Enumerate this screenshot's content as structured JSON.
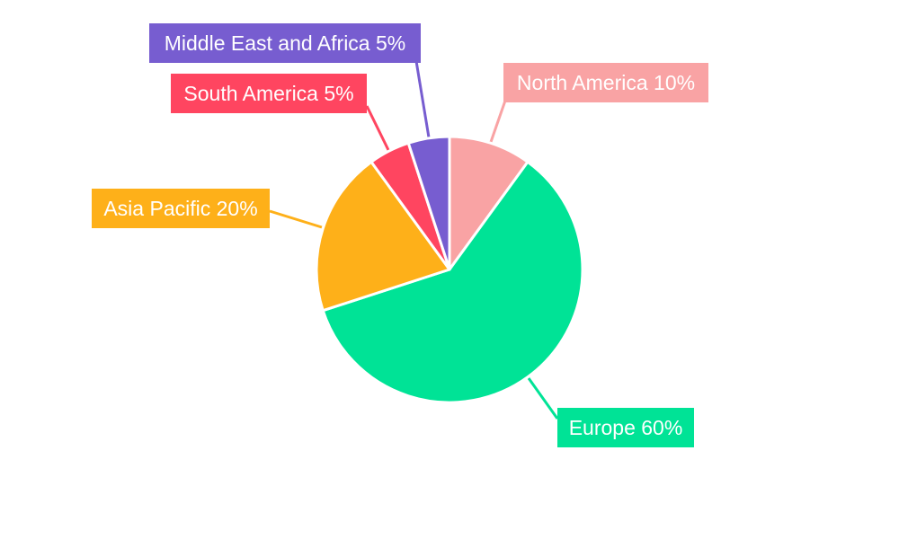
{
  "chart_data": {
    "type": "pie",
    "title": "",
    "categories": [
      "North America",
      "Europe",
      "Asia Pacific",
      "South America",
      "Middle East and Africa"
    ],
    "values": [
      10,
      60,
      20,
      5,
      5
    ],
    "labels": [
      "North America 10%",
      "Europe 60%",
      "Asia Pacific 20%",
      "South America 5%",
      "Middle East and Africa 5%"
    ],
    "colors": [
      "#f9a3a4",
      "#00e396",
      "#feb019",
      "#ff4560",
      "#775dd0"
    ],
    "start_angle_deg": 0,
    "direction": "clockwise",
    "legend": "none"
  }
}
